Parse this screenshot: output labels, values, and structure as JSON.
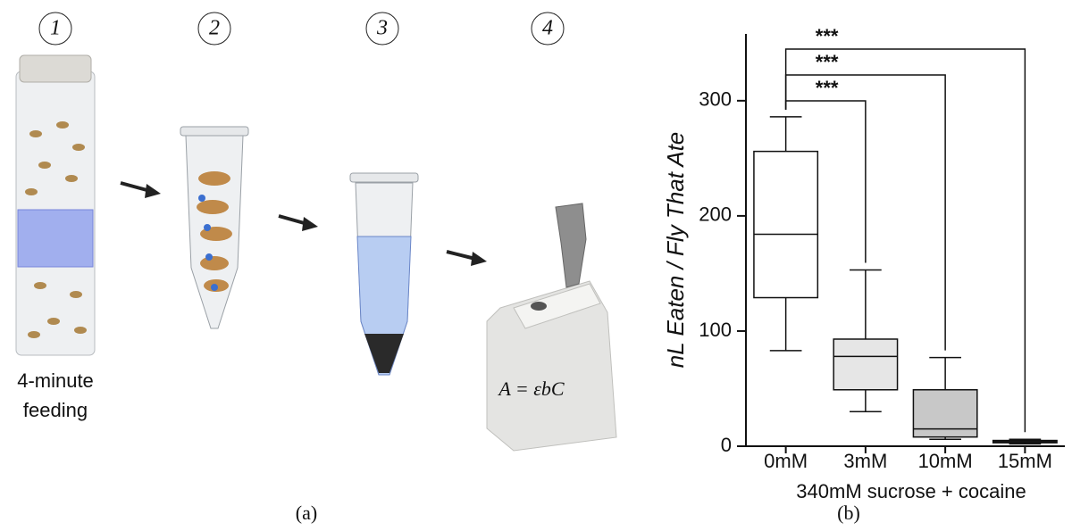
{
  "panel_a": {
    "steps": [
      "1",
      "2",
      "3",
      "4"
    ],
    "caption_lines": [
      "4-minute",
      "feeding"
    ],
    "formula": "A = εbC",
    "label": "(a)"
  },
  "chart_data": {
    "type": "box",
    "label": "(b)",
    "y_label": "nL Eaten / Fly That Ate",
    "x_label": "340mM sucrose + cocaine",
    "categories": [
      "0mM",
      "3mM",
      "10mM",
      "15mM"
    ],
    "boxes": [
      {
        "min": 83,
        "q1": 129,
        "median": 184,
        "q3": 256,
        "max": 286,
        "color": "#ffffff"
      },
      {
        "min": 30,
        "q1": 49,
        "median": 78,
        "q3": 93,
        "max": 153,
        "color": "#e6e6e6"
      },
      {
        "min": 6,
        "q1": 8,
        "median": 15,
        "q3": 49,
        "max": 77,
        "color": "#c8c8c8"
      },
      {
        "min": 2,
        "q1": 3,
        "median": 4,
        "q3": 5,
        "max": 6,
        "color": "#8c8c8c"
      }
    ],
    "significance": [
      "***",
      "***",
      "***"
    ],
    "ylim": [
      0,
      358
    ],
    "yticks": [
      0,
      100,
      200,
      300
    ]
  }
}
